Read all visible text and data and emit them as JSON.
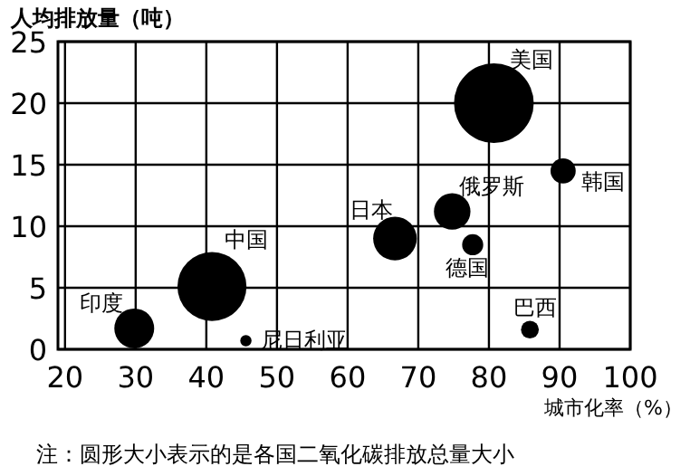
{
  "chart_data": {
    "type": "bubble",
    "ylabel": "人均排放量（吨）",
    "xlabel": "城市化率（%）",
    "annotations": [
      "注：圆形大小表示的是各国二氧化碳排放总量大小"
    ],
    "xlim": [
      19,
      100
    ],
    "xticks": [
      20,
      30,
      40,
      50,
      60,
      70,
      80,
      90,
      100
    ],
    "ylim": [
      0,
      25
    ],
    "yticks": [
      0,
      5,
      10,
      15,
      20,
      25
    ],
    "grid": true,
    "series": [
      {
        "name": "美国",
        "color": "#000000",
        "x": [
          80.7
        ],
        "values": [
          20.0
        ],
        "sizes": [
          1
        ]
      },
      {
        "name": "中国",
        "color": "#000000",
        "x": [
          40.8
        ],
        "values": [
          5.1
        ],
        "sizes": [
          0.75
        ]
      },
      {
        "name": "印度",
        "color": "#000000",
        "x": [
          29.8
        ],
        "values": [
          1.7
        ],
        "sizes": [
          0.25
        ]
      },
      {
        "name": "尼日利亚",
        "color": "#000000",
        "x": [
          45.6
        ],
        "values": [
          0.7
        ],
        "sizes": [
          0.02
        ]
      },
      {
        "name": "日本",
        "color": "#000000",
        "x": [
          66.7
        ],
        "values": [
          9.0
        ],
        "sizes": [
          0.3
        ]
      },
      {
        "name": "俄罗斯",
        "color": "#000000",
        "x": [
          74.8
        ],
        "values": [
          11.2
        ],
        "sizes": [
          0.21
        ]
      },
      {
        "name": "德国",
        "color": "#000000",
        "x": [
          77.7
        ],
        "values": [
          8.5
        ],
        "sizes": [
          0.07
        ]
      },
      {
        "name": "韩国",
        "color": "#000000",
        "x": [
          90.5
        ],
        "values": [
          14.5
        ],
        "sizes": [
          0.1
        ]
      },
      {
        "name": "巴西",
        "color": "#000000",
        "x": [
          85.8
        ],
        "values": [
          1.6
        ],
        "sizes": [
          0.05
        ]
      }
    ]
  }
}
